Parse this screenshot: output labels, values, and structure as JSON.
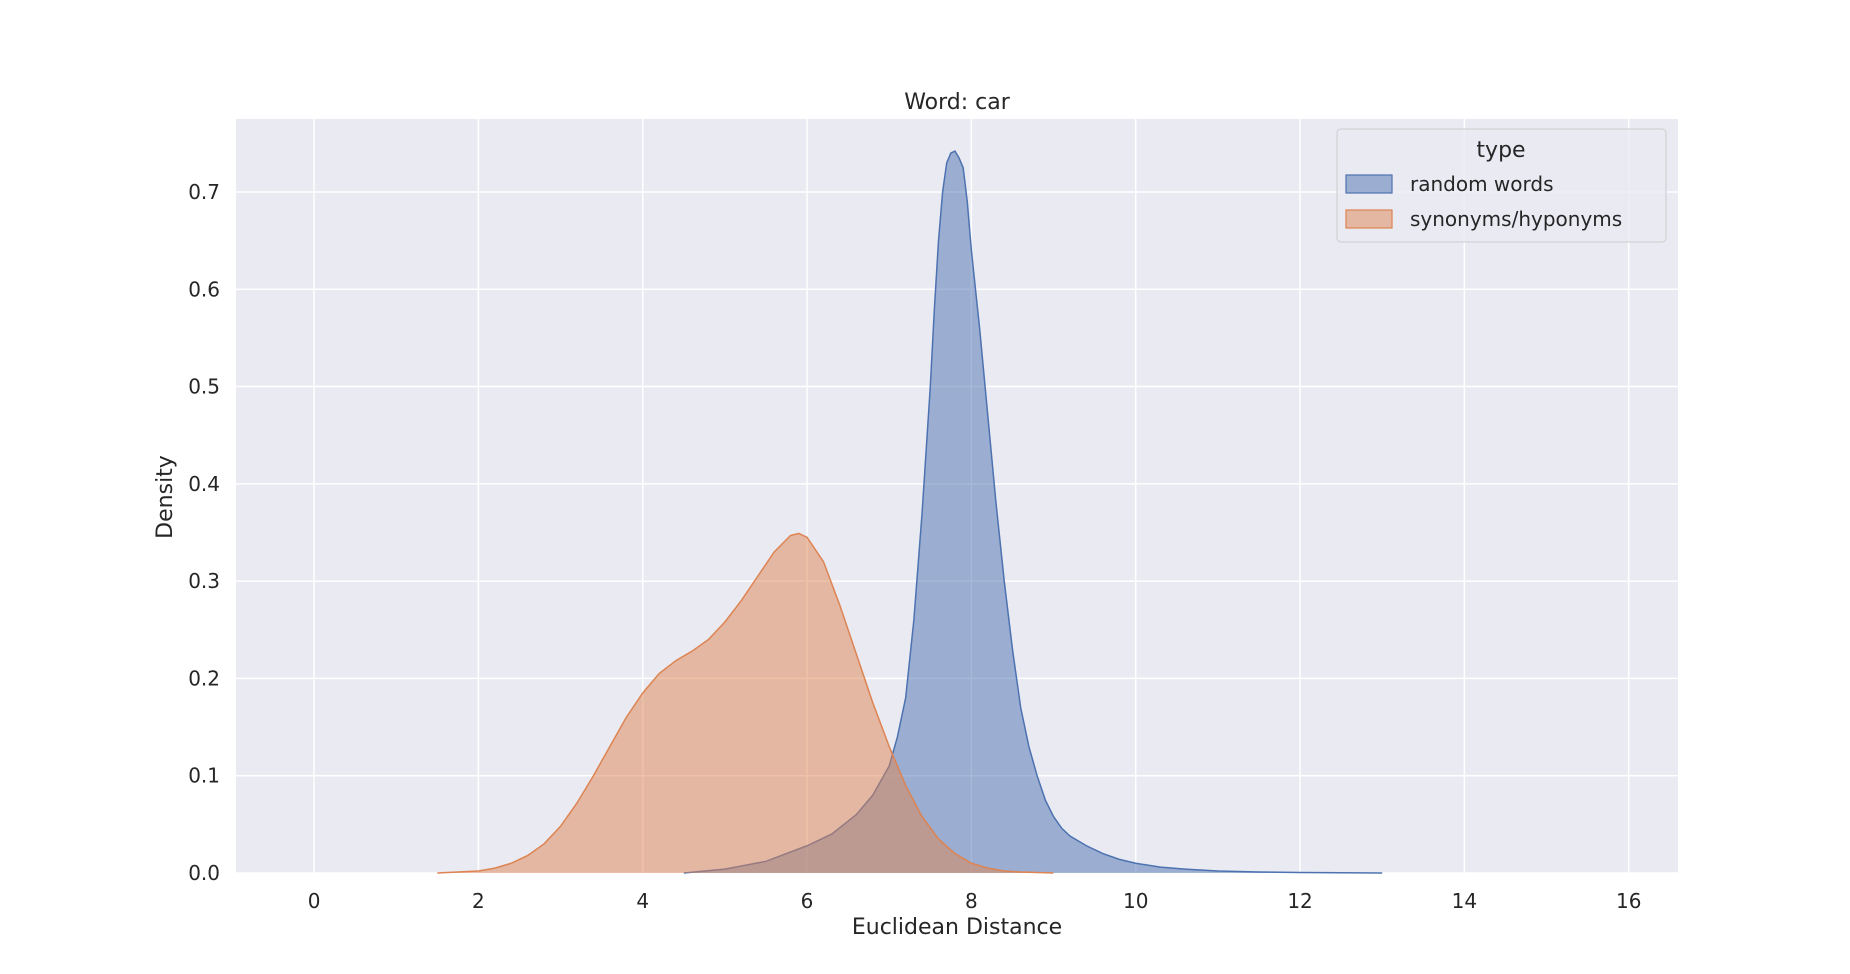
{
  "chart_data": {
    "type": "area",
    "title": "Word: car",
    "xlabel": "Euclidean Distance",
    "ylabel": "Density",
    "xlim": [
      -0.95,
      16.6
    ],
    "ylim": [
      0,
      0.775
    ],
    "xticks": [
      0,
      2,
      4,
      6,
      8,
      10,
      12,
      14,
      16
    ],
    "yticks": [
      0.0,
      0.1,
      0.2,
      0.3,
      0.4,
      0.5,
      0.6,
      0.7
    ],
    "xtick_labels": [
      "0",
      "2",
      "4",
      "6",
      "8",
      "10",
      "12",
      "14",
      "16"
    ],
    "ytick_labels": [
      "0.0",
      "0.1",
      "0.2",
      "0.3",
      "0.4",
      "0.5",
      "0.6",
      "0.7"
    ],
    "grid": true,
    "legend": {
      "title": "type",
      "placement": "top-right"
    },
    "series": [
      {
        "name": "random words",
        "color": "#4c72b0",
        "x": [
          4.5,
          5.0,
          5.5,
          6.0,
          6.3,
          6.6,
          6.8,
          7.0,
          7.1,
          7.2,
          7.3,
          7.4,
          7.5,
          7.55,
          7.6,
          7.65,
          7.7,
          7.75,
          7.8,
          7.85,
          7.9,
          7.95,
          8.0,
          8.1,
          8.2,
          8.3,
          8.4,
          8.5,
          8.6,
          8.7,
          8.8,
          8.9,
          9.0,
          9.1,
          9.2,
          9.4,
          9.6,
          9.8,
          10.0,
          10.3,
          10.6,
          11.0,
          11.5,
          12.0,
          13.0
        ],
        "y": [
          0.0,
          0.004,
          0.012,
          0.028,
          0.04,
          0.06,
          0.08,
          0.11,
          0.14,
          0.18,
          0.26,
          0.37,
          0.5,
          0.58,
          0.65,
          0.7,
          0.73,
          0.74,
          0.742,
          0.735,
          0.725,
          0.69,
          0.64,
          0.56,
          0.47,
          0.38,
          0.3,
          0.23,
          0.17,
          0.13,
          0.1,
          0.075,
          0.058,
          0.046,
          0.038,
          0.028,
          0.02,
          0.014,
          0.01,
          0.006,
          0.004,
          0.002,
          0.001,
          0.0005,
          0.0
        ]
      },
      {
        "name": "synonyms/hyponyms",
        "color": "#dd8452",
        "x": [
          1.5,
          2.0,
          2.2,
          2.4,
          2.6,
          2.8,
          3.0,
          3.2,
          3.4,
          3.6,
          3.8,
          4.0,
          4.2,
          4.4,
          4.6,
          4.8,
          5.0,
          5.2,
          5.4,
          5.6,
          5.8,
          5.9,
          6.0,
          6.2,
          6.4,
          6.6,
          6.8,
          7.0,
          7.2,
          7.4,
          7.6,
          7.8,
          8.0,
          8.2,
          8.4,
          8.6,
          8.8,
          9.0
        ],
        "y": [
          0.0,
          0.002,
          0.005,
          0.01,
          0.018,
          0.03,
          0.048,
          0.072,
          0.1,
          0.13,
          0.16,
          0.185,
          0.205,
          0.218,
          0.228,
          0.24,
          0.258,
          0.28,
          0.305,
          0.33,
          0.347,
          0.349,
          0.345,
          0.32,
          0.275,
          0.225,
          0.175,
          0.13,
          0.09,
          0.058,
          0.035,
          0.02,
          0.01,
          0.005,
          0.002,
          0.001,
          0.0005,
          0.0
        ]
      }
    ]
  }
}
